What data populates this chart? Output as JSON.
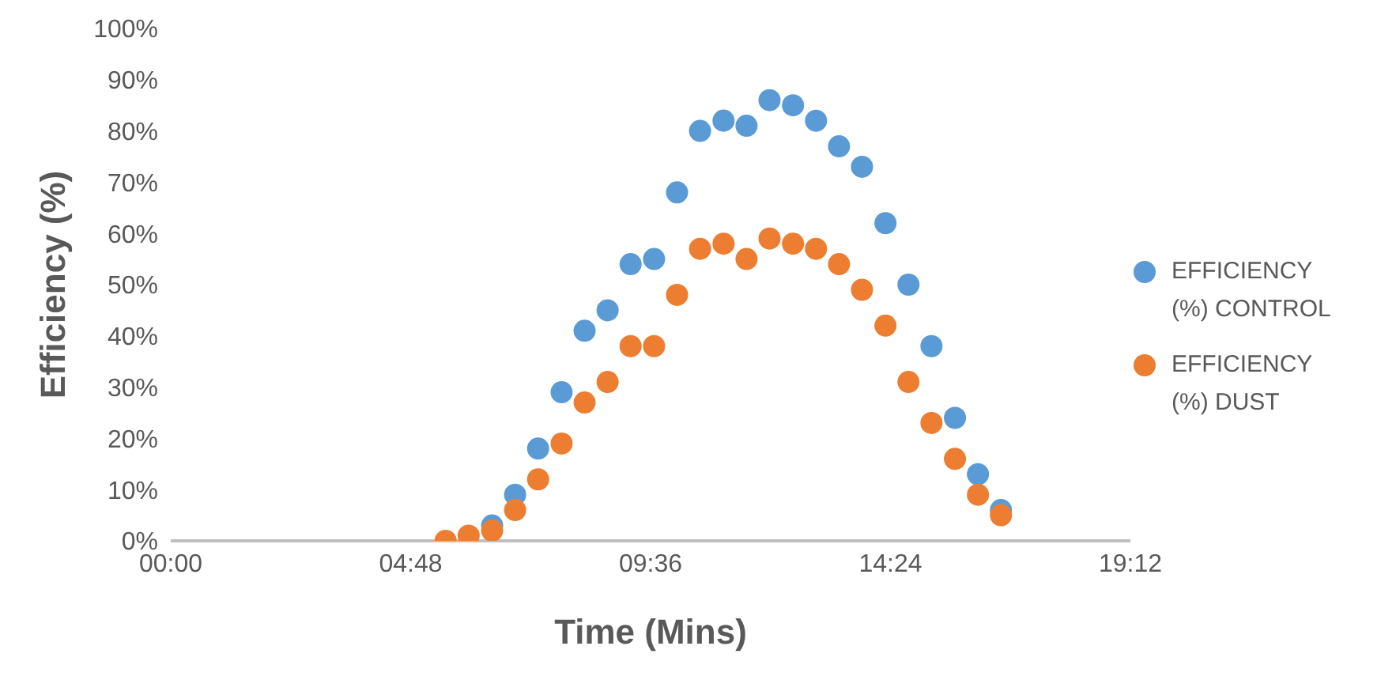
{
  "chart_data": {
    "type": "scatter",
    "xlabel": "Time (Mins)",
    "ylabel": "Efficiency (%)",
    "xlim": [
      0,
      19.2
    ],
    "xticks": [
      {
        "value": 0,
        "label": "00:00"
      },
      {
        "value": 4.8,
        "label": "04:48"
      },
      {
        "value": 9.6,
        "label": "09:36"
      },
      {
        "value": 14.4,
        "label": "14:24"
      },
      {
        "value": 19.2,
        "label": "19:12"
      }
    ],
    "ylim": [
      0,
      100
    ],
    "yticks": [
      {
        "value": 0,
        "label": "0%"
      },
      {
        "value": 10,
        "label": "10%"
      },
      {
        "value": 20,
        "label": "20%"
      },
      {
        "value": 30,
        "label": "30%"
      },
      {
        "value": 40,
        "label": "40%"
      },
      {
        "value": 50,
        "label": "50%"
      },
      {
        "value": 60,
        "label": "60%"
      },
      {
        "value": 70,
        "label": "70%"
      },
      {
        "value": 80,
        "label": "80%"
      },
      {
        "value": 90,
        "label": "90%"
      },
      {
        "value": 100,
        "label": "100%"
      }
    ],
    "grid": false,
    "legend": "right",
    "marker": "circle",
    "series": [
      {
        "name": "EFFICIENCY (%) CONTROL",
        "color": "#5b9bd5",
        "x": [
          6.43,
          6.89,
          7.35,
          7.82,
          8.28,
          8.74,
          9.2,
          9.67,
          10.13,
          10.59,
          11.06,
          11.52,
          11.98,
          12.45,
          12.91,
          13.37,
          13.83,
          14.3,
          14.76,
          15.22,
          15.69,
          16.15,
          16.61
        ],
        "values": [
          3,
          9,
          18,
          29,
          41,
          45,
          54,
          55,
          68,
          80,
          82,
          81,
          86,
          85,
          82,
          77,
          73,
          62,
          50,
          38,
          24,
          13,
          6
        ]
      },
      {
        "name": "EFFICIENCY (%) DUST",
        "color": "#ed7d31",
        "x": [
          5.5,
          5.96,
          6.43,
          6.89,
          7.35,
          7.82,
          8.28,
          8.74,
          9.2,
          9.67,
          10.13,
          10.59,
          11.06,
          11.52,
          11.98,
          12.45,
          12.91,
          13.37,
          13.83,
          14.3,
          14.76,
          15.22,
          15.69,
          16.15,
          16.61
        ],
        "values": [
          0,
          1,
          2,
          6,
          12,
          19,
          27,
          31,
          38,
          38,
          48,
          57,
          58,
          55,
          59,
          58,
          57,
          54,
          49,
          42,
          31,
          23,
          16,
          9,
          5
        ]
      }
    ]
  }
}
